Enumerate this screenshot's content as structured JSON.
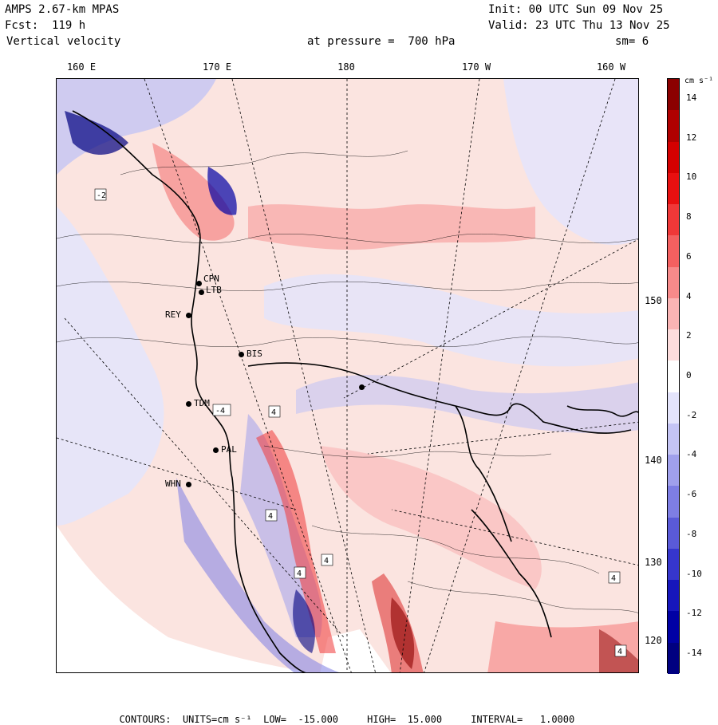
{
  "header": {
    "model": "AMPS 2.67-km MPAS",
    "forecast": "Fcst:  119 h",
    "field": "Vertical velocity",
    "init": "Init: 00 UTC Sun 09 Nov 25",
    "valid": "Valid: 23 UTC Thu 13 Nov 25",
    "pressure": "at pressure =  700 hPa",
    "smoothing": "sm= 6"
  },
  "longitude_labels": [
    "160 E",
    "170 E",
    "180",
    "170 W",
    "160 W"
  ],
  "latitude_labels": [
    "150 W",
    "140 W",
    "130 W",
    "120 W"
  ],
  "stations": [
    "CPN",
    "LTB",
    "REY",
    "BIS",
    "TDM",
    "PAL",
    "WHN"
  ],
  "contour_extrema_labels": [
    "4",
    "4",
    "-2",
    "-4",
    "4",
    "4",
    "4",
    "4"
  ],
  "colorbar": {
    "units": "cm s⁻¹",
    "ticks": [
      "14",
      "12",
      "10",
      "8",
      "6",
      "4",
      "2",
      "0",
      "-2",
      "-4",
      "-6",
      "-8",
      "-10",
      "-12",
      "-14"
    ],
    "colors": [
      "#8b0000",
      "#b00000",
      "#d40000",
      "#e81010",
      "#f03838",
      "#f46060",
      "#f78a8a",
      "#fab4b4",
      "#fddcdc",
      "#ffffff",
      "#e4e4fb",
      "#c4c4f4",
      "#a0a0ec",
      "#7e7ee4",
      "#5a5ad8",
      "#3636cc",
      "#1616bc",
      "#0000a4",
      "#000080"
    ]
  },
  "footer": {
    "contours": "CONTOURS:",
    "units": "UNITS=cm s⁻¹",
    "low": "LOW=  -15.000",
    "high": "HIGH=  15.000",
    "interval": "INTERVAL=   1.0000"
  }
}
